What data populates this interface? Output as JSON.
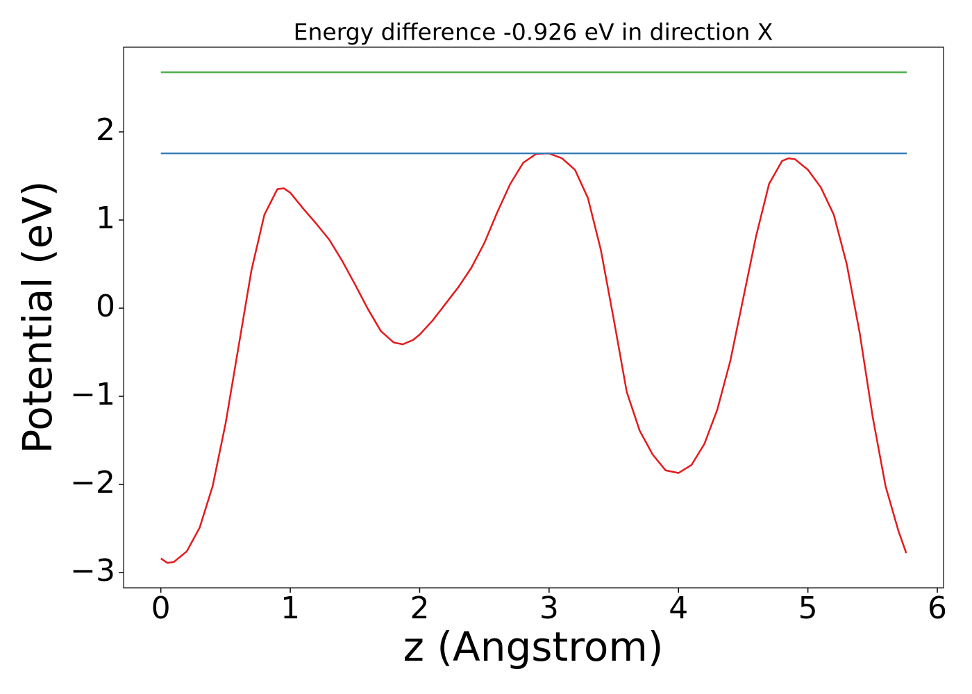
{
  "chart_data": {
    "type": "line",
    "title": "Energy difference -0.926 eV in direction X",
    "xlabel": "z (Angstrom)",
    "ylabel": "Potential (eV)",
    "xlim": [
      -0.288,
      6.048
    ],
    "ylim": [
      -3.173,
      2.961
    ],
    "xticks": [
      0,
      1,
      2,
      3,
      4,
      5,
      6
    ],
    "yticks": [
      {
        "value": -3,
        "label": "−3"
      },
      {
        "value": -2,
        "label": "−2"
      },
      {
        "value": -1,
        "label": "−1"
      },
      0,
      1,
      2
    ],
    "series": [
      {
        "color": "#e41a1c",
        "x": [
          0,
          0.05,
          0.1,
          0.2,
          0.3,
          0.4,
          0.5,
          0.6,
          0.7,
          0.8,
          0.9,
          0.95,
          1.0,
          1.1,
          1.2,
          1.3,
          1.4,
          1.5,
          1.6,
          1.7,
          1.8,
          1.87,
          1.95,
          2.0,
          2.1,
          2.2,
          2.3,
          2.4,
          2.5,
          2.6,
          2.7,
          2.8,
          2.9,
          3.0,
          3.1,
          3.2,
          3.3,
          3.4,
          3.5,
          3.6,
          3.7,
          3.8,
          3.9,
          4.0,
          4.1,
          4.2,
          4.3,
          4.4,
          4.5,
          4.6,
          4.7,
          4.8,
          4.85,
          4.9,
          5.0,
          5.1,
          5.2,
          5.3,
          5.4,
          5.5,
          5.6,
          5.7,
          5.76
        ],
        "values": [
          -2.84,
          -2.89,
          -2.88,
          -2.76,
          -2.49,
          -2.02,
          -1.31,
          -0.44,
          0.43,
          1.06,
          1.35,
          1.36,
          1.31,
          1.13,
          0.96,
          0.78,
          0.54,
          0.27,
          -0.01,
          -0.26,
          -0.39,
          -0.41,
          -0.36,
          -0.3,
          -0.14,
          0.05,
          0.24,
          0.46,
          0.74,
          1.09,
          1.41,
          1.65,
          1.75,
          1.756,
          1.7,
          1.57,
          1.25,
          0.66,
          -0.13,
          -0.95,
          -1.39,
          -1.66,
          -1.84,
          -1.87,
          -1.78,
          -1.54,
          -1.15,
          -0.6,
          0.11,
          0.82,
          1.41,
          1.67,
          1.7,
          1.69,
          1.57,
          1.37,
          1.06,
          0.5,
          -0.28,
          -1.23,
          -2.02,
          -2.53,
          -2.78
        ]
      },
      {
        "color": "#377eb8",
        "x": [
          0,
          5.764
        ],
        "values": [
          1.756,
          1.756
        ]
      },
      {
        "color": "#4daf4a",
        "x": [
          0,
          5.764
        ],
        "values": [
          2.677,
          2.677
        ]
      }
    ]
  }
}
